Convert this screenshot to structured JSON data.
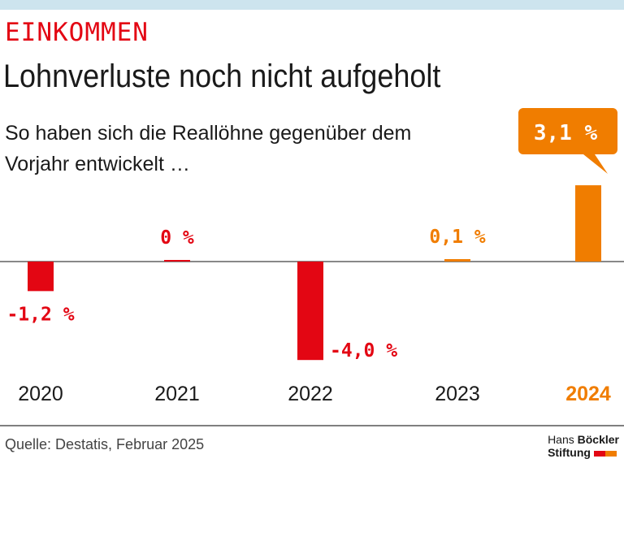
{
  "kicker": "EINKOMMEN",
  "title": "Lohnverluste noch nicht aufgeholt",
  "subtitle": "So haben sich die Reallöhne gegenüber dem Vorjahr entwickelt …",
  "source": "Quelle: Destatis, Februar 2025",
  "logo": {
    "line1a": "Hans",
    "line1b": "Böckler",
    "line2": "Stiftung"
  },
  "colors": {
    "negative": "#e30613",
    "positive": "#f07d00",
    "band": "#cde4ee"
  },
  "chart_data": {
    "type": "bar",
    "categories": [
      "2020",
      "2021",
      "2022",
      "2023",
      "2024"
    ],
    "values": [
      -1.2,
      0,
      -4.0,
      0.1,
      3.1
    ],
    "labels": [
      "-1,2 %",
      "0 %",
      "-4,0 %",
      "0,1 %",
      "3,1 %"
    ],
    "bar_colors": [
      "#e30613",
      "#e30613",
      "#e30613",
      "#f07d00",
      "#f07d00"
    ],
    "highlight": "2024",
    "ylim": [
      -4.0,
      3.1
    ],
    "grid": false
  }
}
